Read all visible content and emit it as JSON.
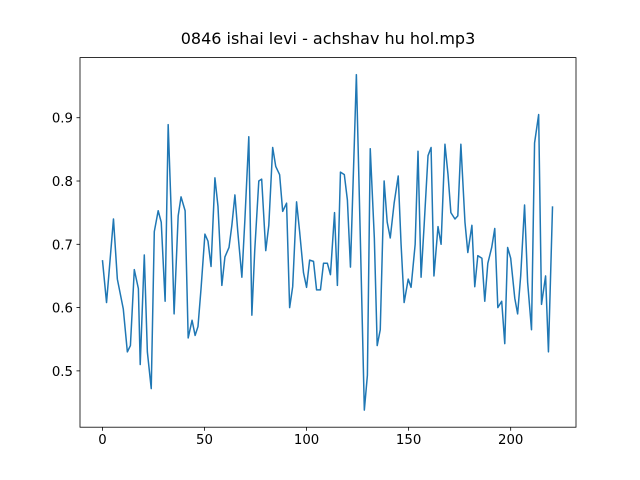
{
  "chart_data": {
    "type": "line",
    "title": "0846 ishai levi - achshav hu hol.mp3",
    "x": [
      0,
      2,
      5.4,
      7.3,
      10.2,
      12.2,
      13.7,
      15.6,
      17.6,
      18.5,
      20.5,
      22,
      23.9,
      25.4,
      27.3,
      28.8,
      30.7,
      32.2,
      33.7,
      35.1,
      37.1,
      38.5,
      40.5,
      42,
      43.9,
      45.4,
      46.8,
      48.3,
      50.2,
      51.7,
      53.2,
      55.1,
      56.6,
      58.5,
      60,
      62,
      63.4,
      64.9,
      66.3,
      68.3,
      69.8,
      71.7,
      73.2,
      74.6,
      76.6,
      78,
      80,
      81.5,
      83.4,
      84.9,
      86.8,
      88.3,
      90.2,
      91.7,
      93.2,
      95.1,
      96.6,
      98.5,
      100,
      101.5,
      103.4,
      104.9,
      106.8,
      108.3,
      110.2,
      111.7,
      113.7,
      115.1,
      116.6,
      118.5,
      120,
      121.5,
      123.4,
      124.4,
      126.3,
      128.3,
      129.8,
      131.2,
      133.2,
      134.6,
      136.1,
      138,
      139.5,
      141,
      142.9,
      144.9,
      146.3,
      147.8,
      149.8,
      151.2,
      153.2,
      154.6,
      156.1,
      157.6,
      159.5,
      161,
      162.4,
      164.4,
      165.9,
      167.8,
      169.3,
      170.7,
      172.7,
      174.1,
      175.6,
      177.6,
      179,
      181,
      182.4,
      183.9,
      185.9,
      187.3,
      188.8,
      190.7,
      192.2,
      193.7,
      195.6,
      197.1,
      198.5,
      200,
      202,
      203.4,
      204.9,
      206.8,
      208.3,
      210.2,
      211.7,
      213.7,
      215.1,
      217.1,
      218.5,
      220.5
    ],
    "series": [
      {
        "color": "#1f77b4",
        "values": [
          0.675,
          0.608,
          0.74,
          0.645,
          0.598,
          0.53,
          0.54,
          0.66,
          0.63,
          0.51,
          0.683,
          0.53,
          0.472,
          0.72,
          0.753,
          0.735,
          0.61,
          0.889,
          0.75,
          0.59,
          0.745,
          0.775,
          0.753,
          0.552,
          0.58,
          0.556,
          0.57,
          0.63,
          0.716,
          0.705,
          0.665,
          0.805,
          0.76,
          0.635,
          0.68,
          0.695,
          0.73,
          0.778,
          0.72,
          0.648,
          0.74,
          0.87,
          0.588,
          0.69,
          0.8,
          0.803,
          0.69,
          0.73,
          0.853,
          0.823,
          0.81,
          0.752,
          0.765,
          0.6,
          0.633,
          0.767,
          0.72,
          0.655,
          0.632,
          0.675,
          0.673,
          0.628,
          0.628,
          0.67,
          0.67,
          0.652,
          0.75,
          0.635,
          0.814,
          0.81,
          0.77,
          0.664,
          0.86,
          0.968,
          0.715,
          0.438,
          0.493,
          0.851,
          0.71,
          0.54,
          0.565,
          0.8,
          0.735,
          0.71,
          0.765,
          0.808,
          0.7,
          0.608,
          0.645,
          0.632,
          0.7,
          0.847,
          0.648,
          0.73,
          0.84,
          0.853,
          0.65,
          0.728,
          0.7,
          0.858,
          0.81,
          0.75,
          0.74,
          0.745,
          0.858,
          0.735,
          0.687,
          0.73,
          0.633,
          0.682,
          0.678,
          0.61,
          0.67,
          0.695,
          0.725,
          0.6,
          0.61,
          0.543,
          0.695,
          0.678,
          0.615,
          0.59,
          0.65,
          0.762,
          0.64,
          0.565,
          0.86,
          0.905,
          0.605,
          0.65,
          0.53,
          0.76
        ]
      }
    ],
    "xlim": [
      -11,
      232
    ],
    "ylim": [
      0.411,
      0.995
    ],
    "xticks": [
      0,
      50,
      100,
      150,
      200
    ],
    "yticks": [
      0.5,
      0.6,
      0.7,
      0.8,
      0.9
    ]
  }
}
